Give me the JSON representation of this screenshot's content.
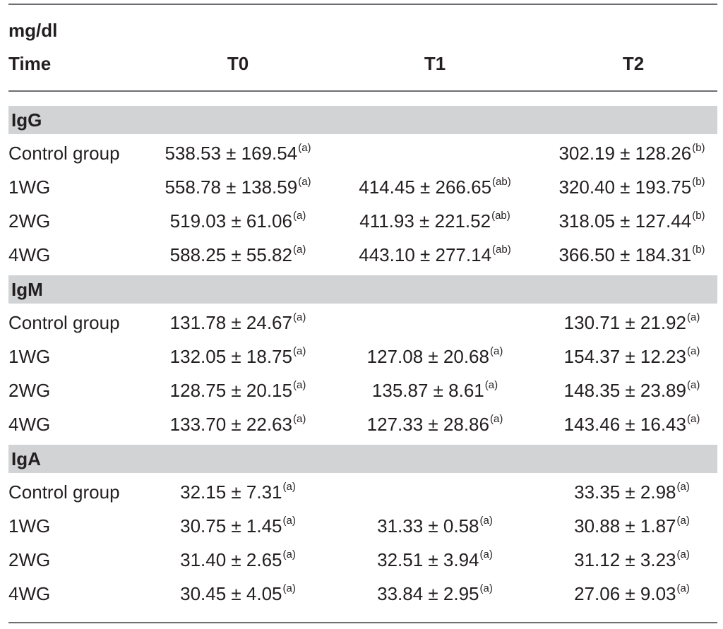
{
  "header": {
    "unit": "mg/dl",
    "time_label": "Time",
    "columns": [
      "T0",
      "T1",
      "T2"
    ]
  },
  "sections": [
    {
      "name": "IgG",
      "rows": [
        {
          "label": "Control group",
          "cells": [
            {
              "v": "538.53 ± 169.54",
              "s": "(a)"
            },
            {
              "v": "",
              "s": ""
            },
            {
              "v": "302.19 ± 128.26",
              "s": "(b)"
            }
          ]
        },
        {
          "label": "1WG",
          "cells": [
            {
              "v": "558.78 ± 138.59",
              "s": "(a)"
            },
            {
              "v": "414.45 ± 266.65",
              "s": "(ab)"
            },
            {
              "v": "320.40 ± 193.75",
              "s": "(b)"
            }
          ]
        },
        {
          "label": "2WG",
          "cells": [
            {
              "v": "519.03 ± 61.06",
              "s": "(a)"
            },
            {
              "v": "411.93 ± 221.52",
              "s": "(ab)"
            },
            {
              "v": "318.05 ± 127.44",
              "s": "(b)"
            }
          ]
        },
        {
          "label": "4WG",
          "cells": [
            {
              "v": "588.25 ± 55.82",
              "s": "(a)"
            },
            {
              "v": "443.10 ± 277.14",
              "s": "(ab)"
            },
            {
              "v": "366.50 ± 184.31",
              "s": "(b)"
            }
          ]
        }
      ]
    },
    {
      "name": "IgM",
      "rows": [
        {
          "label": "Control group",
          "cells": [
            {
              "v": "131.78 ± 24.67",
              "s": "(a)"
            },
            {
              "v": "",
              "s": ""
            },
            {
              "v": "130.71 ± 21.92",
              "s": "(a)"
            }
          ]
        },
        {
          "label": "1WG",
          "cells": [
            {
              "v": "132.05 ± 18.75",
              "s": "(a)"
            },
            {
              "v": "127.08 ± 20.68",
              "s": "(a)"
            },
            {
              "v": "154.37 ± 12.23",
              "s": "(a)"
            }
          ]
        },
        {
          "label": "2WG",
          "cells": [
            {
              "v": "128.75 ± 20.15",
              "s": "(a)"
            },
            {
              "v": "135.87 ± 8.61",
              "s": "(a)"
            },
            {
              "v": "148.35 ± 23.89",
              "s": "(a)"
            }
          ]
        },
        {
          "label": "4WG",
          "cells": [
            {
              "v": "133.70 ± 22.63",
              "s": "(a)"
            },
            {
              "v": "127.33 ± 28.86",
              "s": "(a)"
            },
            {
              "v": "143.46 ± 16.43",
              "s": "(a)"
            }
          ]
        }
      ]
    },
    {
      "name": "IgA",
      "rows": [
        {
          "label": "Control group",
          "cells": [
            {
              "v": "32.15 ± 7.31",
              "s": "(a)"
            },
            {
              "v": "",
              "s": ""
            },
            {
              "v": "33.35 ± 2.98",
              "s": "(a)"
            }
          ]
        },
        {
          "label": "1WG",
          "cells": [
            {
              "v": "30.75 ± 1.45",
              "s": "(a)"
            },
            {
              "v": "31.33 ± 0.58",
              "s": "(a)"
            },
            {
              "v": "30.88 ± 1.87",
              "s": "(a)"
            }
          ]
        },
        {
          "label": "2WG",
          "cells": [
            {
              "v": "31.40 ± 2.65",
              "s": "(a)"
            },
            {
              "v": "32.51 ± 3.94",
              "s": "(a)"
            },
            {
              "v": "31.12 ± 3.23",
              "s": "(a)"
            }
          ]
        },
        {
          "label": "4WG",
          "cells": [
            {
              "v": "30.45 ± 4.05",
              "s": "(a)"
            },
            {
              "v": "33.84 ± 2.95",
              "s": "(a)"
            },
            {
              "v": "27.06 ± 9.03",
              "s": "(a)"
            }
          ]
        }
      ]
    }
  ]
}
